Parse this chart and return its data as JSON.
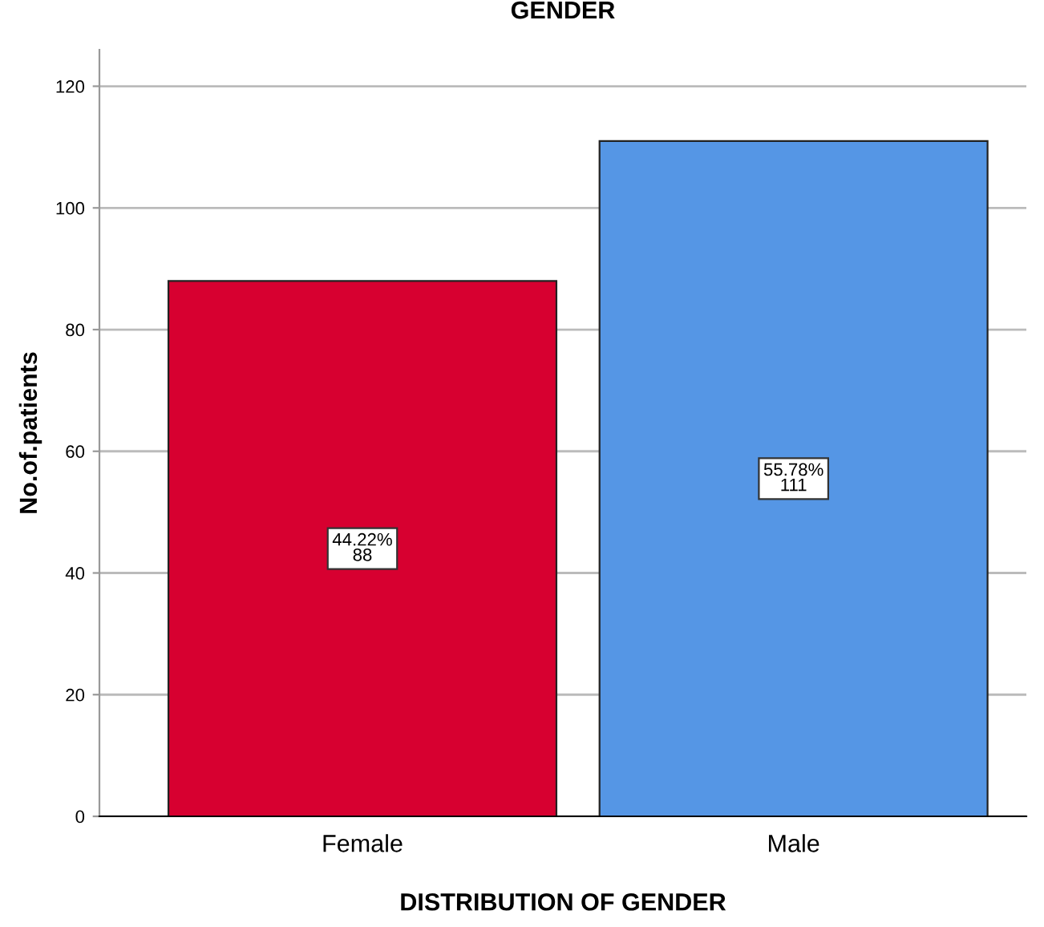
{
  "chart_data": {
    "type": "bar",
    "title": "GENDER",
    "xlabel": "DISTRIBUTION OF GENDER",
    "ylabel": "No.of.patients",
    "categories": [
      "Female",
      "Male"
    ],
    "values": [
      88,
      111
    ],
    "colors": [
      "#d70030",
      "#5596e5"
    ],
    "value_labels": [
      "44.22%\n88",
      "55.78%\n111"
    ],
    "ylim": [
      0,
      126
    ],
    "yticks": [
      0,
      20,
      40,
      60,
      80,
      100,
      120
    ],
    "grid": "y"
  }
}
